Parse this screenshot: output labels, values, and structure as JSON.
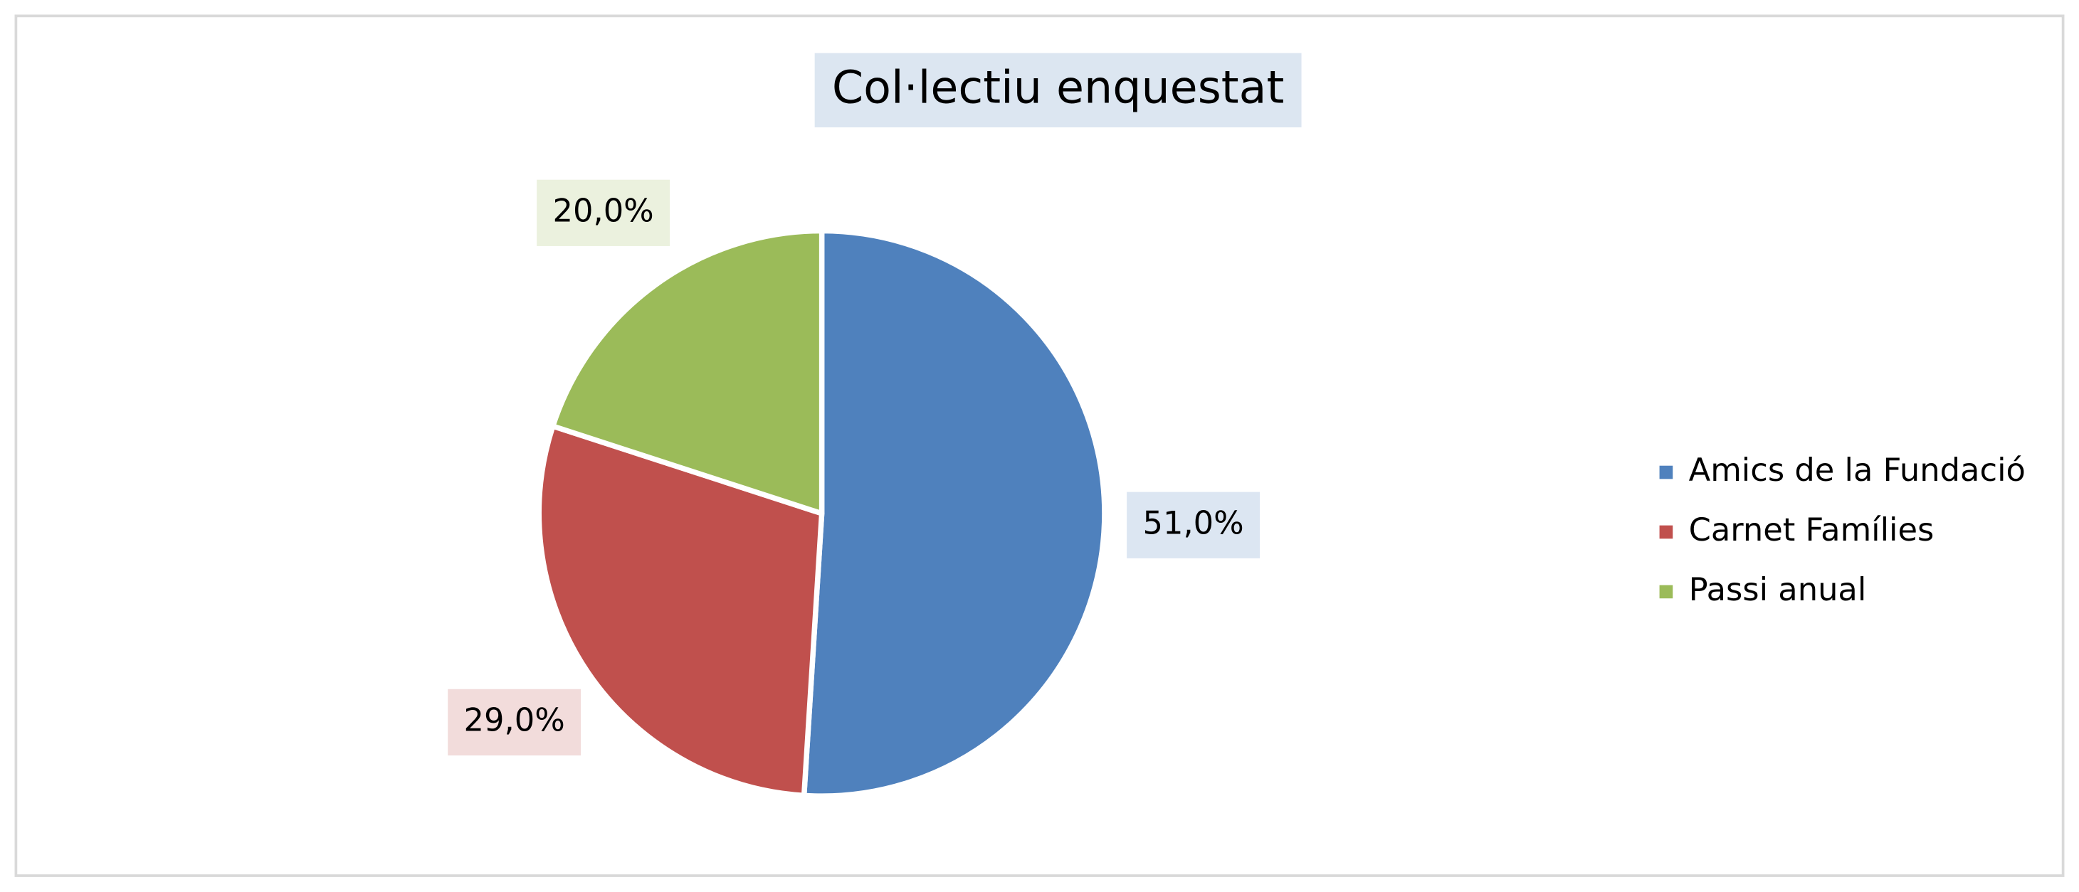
{
  "chart_data": {
    "type": "pie",
    "title": "Col·lectiu enquestat",
    "categories": [
      "Amics de la Fundació",
      "Carnet Famílies",
      "Passi anual"
    ],
    "values": [
      51,
      29,
      20
    ],
    "value_labels": [
      "51,0%",
      "29,0%",
      "20,0%"
    ],
    "colors": [
      "#4f81bd",
      "#c0504d",
      "#9bbb59"
    ],
    "legend": "right"
  }
}
